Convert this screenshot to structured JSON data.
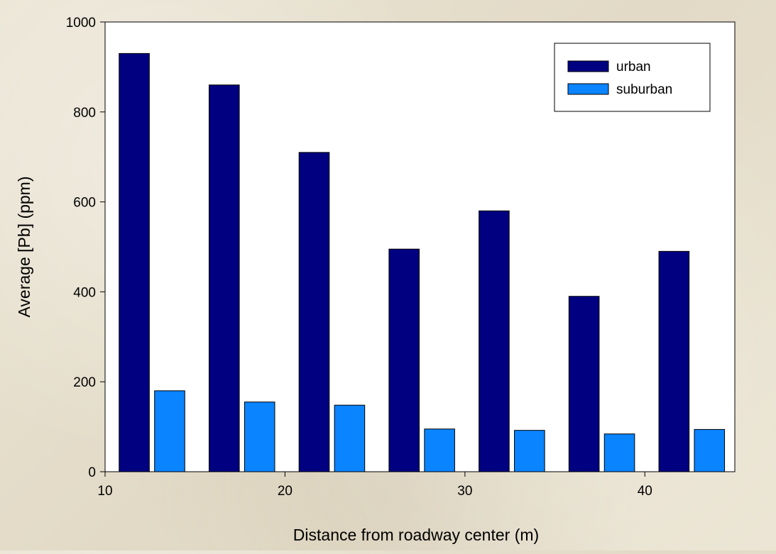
{
  "chart_data": {
    "type": "bar",
    "title": "",
    "xlabel": "Distance from roadway center (m)",
    "ylabel": "Average [Pb] (ppm)",
    "xlim": [
      10,
      45
    ],
    "ylim": [
      0,
      1000
    ],
    "xticks": [
      10,
      20,
      30,
      40
    ],
    "yticks": [
      0,
      200,
      400,
      600,
      800,
      1000
    ],
    "grid": false,
    "legend_position": "top-right",
    "categories": [
      12.5,
      17.5,
      22.5,
      27.5,
      32.5,
      37.5,
      42.5
    ],
    "series": [
      {
        "name": "urban",
        "color": "#000080",
        "values": [
          930,
          860,
          710,
          495,
          580,
          390,
          490
        ]
      },
      {
        "name": "suburban",
        "color": "#0a84ff",
        "values": [
          180,
          155,
          148,
          95,
          92,
          84,
          94
        ]
      }
    ]
  }
}
